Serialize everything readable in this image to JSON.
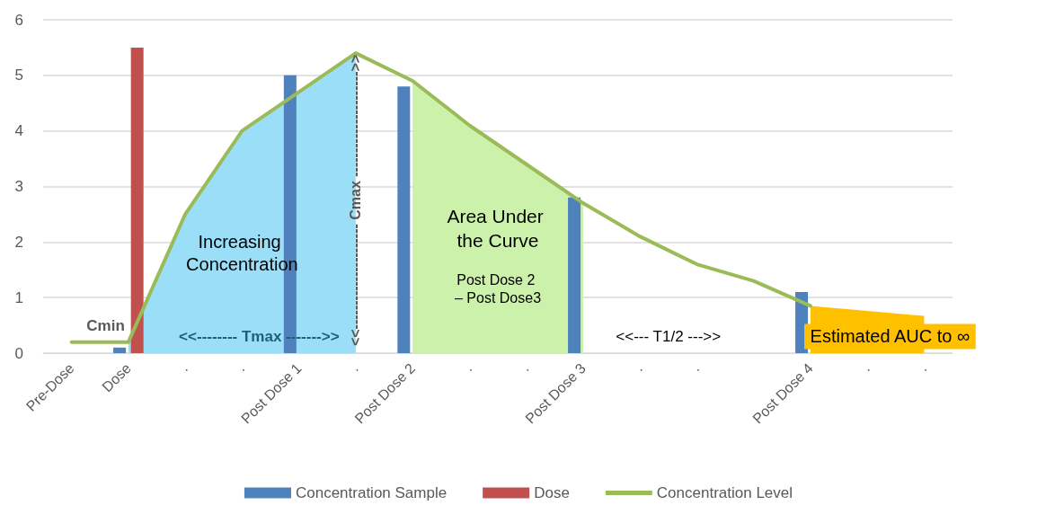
{
  "chart_data": {
    "type": "bar",
    "categories": [
      "Pre-Dose",
      "Dose",
      ".",
      ".",
      "Post Dose 1",
      ".",
      "Post Dose 2",
      ".",
      ".",
      "Post Dose 3",
      ".",
      ".",
      null,
      "Post Dose 4",
      ".",
      "."
    ],
    "series": [
      {
        "type": "area",
        "color": "#9adff7",
        "values": [
          null,
          0.2,
          2.5,
          4.0,
          4.7,
          5.4,
          null,
          null,
          null,
          null,
          null,
          null,
          null,
          null,
          null,
          null
        ]
      },
      {
        "type": "area",
        "color": "#ccf1aa",
        "values": [
          null,
          null,
          null,
          null,
          null,
          null,
          4.9,
          4.1,
          3.4,
          2.7,
          null,
          null,
          null,
          null,
          null,
          null
        ]
      },
      {
        "type": "area",
        "color": "#ffc000",
        "values": [
          null,
          null,
          null,
          null,
          null,
          null,
          null,
          null,
          null,
          null,
          null,
          null,
          null,
          0.85,
          0.76,
          0.67
        ]
      },
      {
        "name": "Concentration Sample",
        "color": "#4f81bd",
        "values": [
          null,
          0.1,
          null,
          null,
          5.0,
          null,
          4.8,
          null,
          null,
          2.8,
          null,
          null,
          null,
          1.1,
          null,
          null
        ]
      },
      {
        "name": "Dose",
        "color": "#c0504d",
        "values": [
          null,
          5.5,
          null,
          null,
          null,
          null,
          null,
          null,
          null,
          null,
          null,
          null,
          null,
          null,
          null,
          null
        ]
      },
      {
        "type": "line",
        "name": "Concentration Level",
        "color": "#9bbb59",
        "values": [
          0.2,
          0.2,
          2.5,
          4.0,
          4.7,
          5.4,
          4.9,
          4.1,
          3.4,
          2.7,
          2.1,
          1.6,
          1.3,
          0.85,
          null,
          null
        ]
      }
    ],
    "ylim": [
      0,
      6
    ],
    "yticks": [
      0,
      1,
      2,
      3,
      4,
      5,
      6
    ],
    "grid": "y",
    "legend": "bottom",
    "marker": "none",
    "line_style": "solid",
    "annotations": [
      "Cmin",
      "<<-------- Tmax ------->>",
      "<<---------------------- Cmax ---------------------->>",
      "Increasing Concentration",
      "Area Under the Curve",
      "Post Dose 2 – Post Dose3",
      "<<--- T1/2 --->>",
      "Estimated AUC to ∞"
    ]
  }
}
